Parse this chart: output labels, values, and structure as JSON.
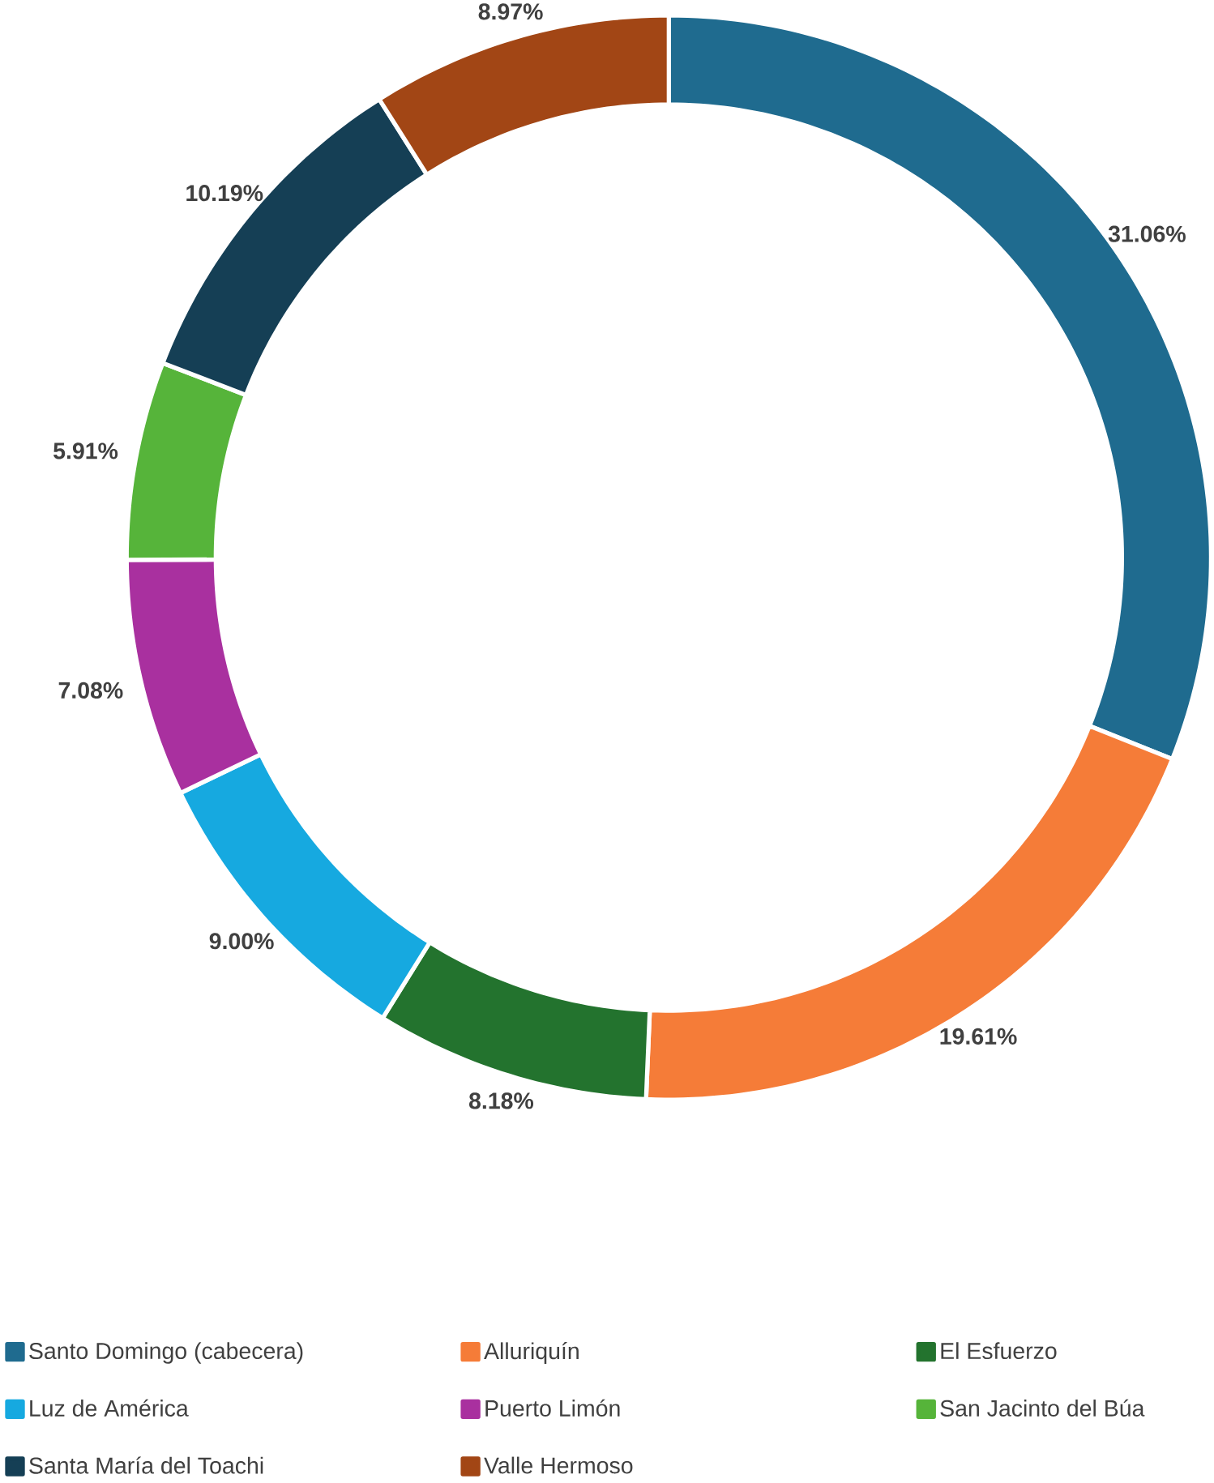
{
  "chart_data": {
    "type": "donut",
    "categories": [
      "Santo Domingo (cabecera)",
      "Alluriquín",
      "El Esfuerzo",
      "Luz de América",
      "Puerto Limón",
      "San Jacinto del Búa",
      "Santa María del Toachi",
      "Valle Hermoso"
    ],
    "values": [
      31.06,
      19.61,
      8.18,
      9.0,
      7.08,
      5.91,
      10.19,
      8.97
    ],
    "value_labels": [
      "31.06%",
      "19.61%",
      "8.18%",
      "9.00%",
      "7.08%",
      "5.91%",
      "10.19%",
      "8.97%"
    ],
    "colors": [
      "#1f6b8f",
      "#f57c38",
      "#23732e",
      "#16a9e0",
      "#a9309f",
      "#56b43a",
      "#153f55",
      "#a24615"
    ],
    "legend": "bottom"
  }
}
